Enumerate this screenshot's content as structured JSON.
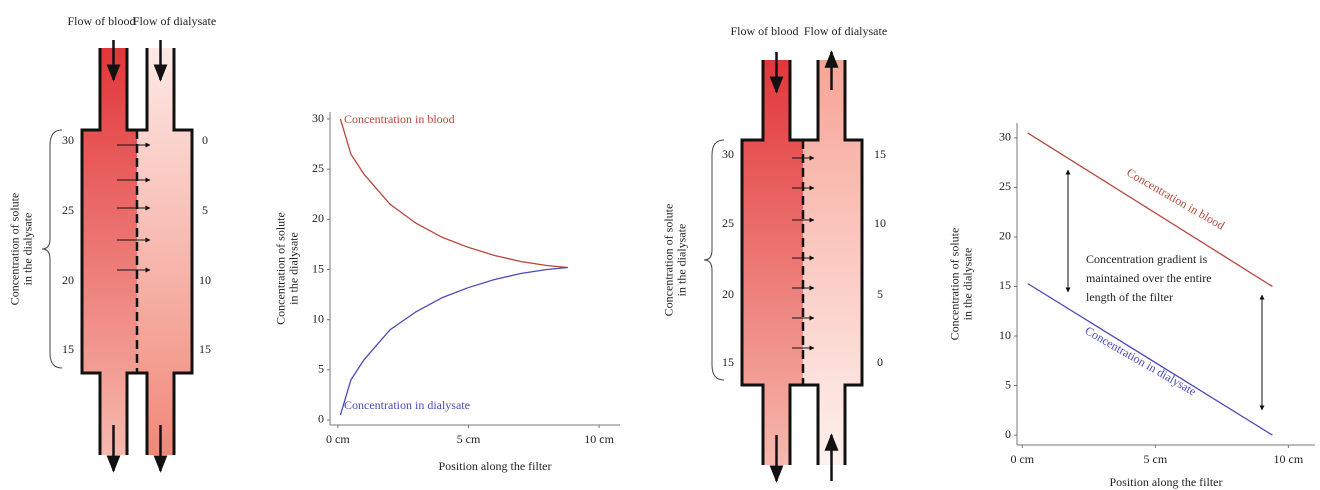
{
  "diagrams": [
    {
      "blood_label": "Flow of blood",
      "dialysate_label": "Flow of dialysate",
      "axis_label": [
        "Concentration of solute",
        "in the dialysate"
      ],
      "blood_scale": [
        "30",
        "25",
        "20",
        "15"
      ],
      "dialysate_scale": [
        "0",
        "5",
        "10",
        "15"
      ]
    },
    {
      "blood_label": "Flow of blood",
      "dialysate_label": "Flow of dialysate",
      "axis_label": [
        "Concentration of solute",
        "in the dialysate"
      ],
      "blood_scale": [
        "30",
        "25",
        "20",
        "15"
      ],
      "dialysate_scale": [
        "15",
        "10",
        "5",
        "0"
      ]
    }
  ],
  "chart_data": [
    {
      "type": "line",
      "y_label": [
        "Concentration of solute",
        "in the dialysate"
      ],
      "x_label": "Position along the filter",
      "xlim": [
        -0.3,
        10.8
      ],
      "ylim": [
        -0.5,
        30.7
      ],
      "xticks": [
        {
          "value": 0,
          "label": "0 cm"
        },
        {
          "value": 5,
          "label": "5 cm"
        },
        {
          "value": 10,
          "label": "10 cm"
        }
      ],
      "yticks": [
        0,
        5,
        10,
        15,
        20,
        25,
        30
      ],
      "x": [
        0.1,
        0.5,
        1,
        2,
        3,
        4,
        5,
        6,
        7,
        8,
        8.8
      ],
      "series": [
        {
          "name": "Concentration in blood",
          "color": "#b5473a",
          "values": [
            30,
            26.5,
            24.5,
            21.5,
            19.6,
            18.2,
            17.2,
            16.4,
            15.8,
            15.4,
            15.2
          ]
        },
        {
          "name": "Concentration in dialysate",
          "color": "#4a4ab8",
          "values": [
            0.5,
            4,
            6,
            9,
            10.8,
            12.2,
            13.2,
            14,
            14.6,
            15,
            15.2
          ]
        }
      ]
    },
    {
      "type": "line",
      "y_label": [
        "Concentration of solute",
        "in the dialysate"
      ],
      "x_label": "Position along the filter",
      "annotation": [
        "Concentration gradient is",
        "maintained over the entire",
        "length of the filter"
      ],
      "xlim": [
        -0.2,
        11
      ],
      "ylim": [
        -1,
        31.5
      ],
      "xticks": [
        {
          "value": 0,
          "label": "0 cm"
        },
        {
          "value": 5,
          "label": "5 cm"
        },
        {
          "value": 10,
          "label": "10 cm"
        }
      ],
      "yticks": [
        0,
        5,
        10,
        15,
        20,
        25,
        30
      ],
      "x": [
        0.2,
        9.4
      ],
      "series": [
        {
          "name": "Concentration in blood",
          "color": "#b5473a",
          "values": [
            30.5,
            15
          ]
        },
        {
          "name": "Concentration in dialysate",
          "color": "#4a4ab8",
          "values": [
            15.3,
            0
          ]
        }
      ]
    }
  ]
}
